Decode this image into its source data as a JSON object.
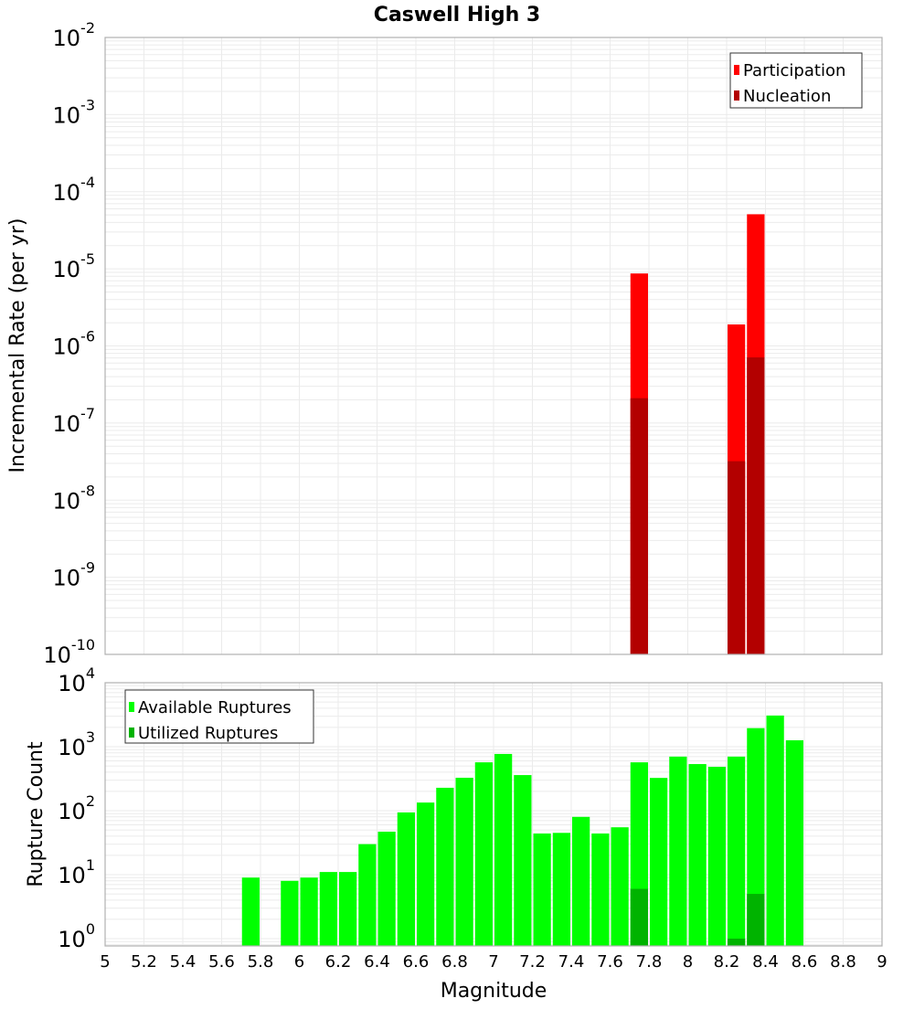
{
  "chart_data": [
    {
      "type": "bar",
      "title": "Caswell High 3",
      "xlabel": "",
      "ylabel": "Incremental Rate (per yr)",
      "yscale": "log",
      "ylim": [
        1e-10,
        0.01
      ],
      "xlim": [
        5,
        9
      ],
      "grid": true,
      "legend_position": "top-right",
      "bin_width": 0.1,
      "ytick_exponents": [
        -2,
        -3,
        -4,
        -5,
        -6,
        -7,
        -8,
        -9,
        -10
      ],
      "categories": [
        7.75,
        8.25,
        8.35
      ],
      "series": [
        {
          "name": "Participation",
          "color": "#ff0000",
          "values": [
            8.7e-06,
            1.9e-06,
            5.1e-05
          ]
        },
        {
          "name": "Nucleation",
          "color": "#b30000",
          "values": [
            2.1e-07,
            3.2e-08,
            7.1e-07
          ]
        }
      ]
    },
    {
      "type": "bar",
      "title": "",
      "xlabel": "Magnitude",
      "ylabel": "Rupture Count",
      "yscale": "log",
      "ylim": [
        0.8,
        10000.0
      ],
      "xlim": [
        5,
        9
      ],
      "grid": true,
      "legend_position": "top-left",
      "bin_width": 0.1,
      "ytick_exponents": [
        4,
        3,
        2,
        1,
        0
      ],
      "xticks": [
        "5",
        "5.2",
        "5.4",
        "5.6",
        "5.8",
        "6",
        "6.2",
        "6.4",
        "6.6",
        "6.8",
        "7",
        "7.2",
        "7.4",
        "7.6",
        "7.8",
        "8",
        "8.2",
        "8.4",
        "8.6",
        "8.8",
        "9"
      ],
      "categories": [
        5.75,
        5.95,
        6.05,
        6.15,
        6.25,
        6.35,
        6.45,
        6.55,
        6.65,
        6.75,
        6.85,
        6.95,
        7.05,
        7.15,
        7.25,
        7.35,
        7.45,
        7.55,
        7.65,
        7.75,
        7.85,
        7.95,
        8.05,
        8.15,
        8.25,
        8.35,
        8.45,
        8.55
      ],
      "series": [
        {
          "name": "Available Ruptures",
          "color": "#00ff00",
          "values": [
            9,
            8,
            9,
            11,
            11,
            30,
            47,
            94,
            134,
            228,
            327,
            570,
            770,
            360,
            44,
            45,
            80,
            44,
            55,
            570,
            325,
            700,
            535,
            485,
            700,
            1950,
            3070,
            1260
          ]
        },
        {
          "name": "Utilized Ruptures",
          "color": "#00b300",
          "values": [
            0,
            0,
            0,
            0,
            0,
            0,
            0,
            0,
            0,
            0,
            0,
            0,
            0,
            0,
            0,
            0,
            0,
            0,
            0,
            6,
            0,
            0,
            0,
            0,
            1,
            5,
            0,
            0
          ]
        }
      ]
    }
  ],
  "figure": {
    "title": "Caswell High 3",
    "top_ylabel": "Incremental Rate (per yr)",
    "bottom_ylabel": "Rupture Count",
    "xlabel": "Magnitude",
    "top_legend": [
      "Participation",
      "Nucleation"
    ],
    "bottom_legend": [
      "Available Ruptures",
      "Utilized Ruptures"
    ],
    "colors": {
      "participation": "#ff0000",
      "nucleation": "#b30000",
      "available": "#00ff00",
      "utilized": "#00b300",
      "grid": "#ebebeb",
      "frame": "#b0b0b0"
    }
  }
}
